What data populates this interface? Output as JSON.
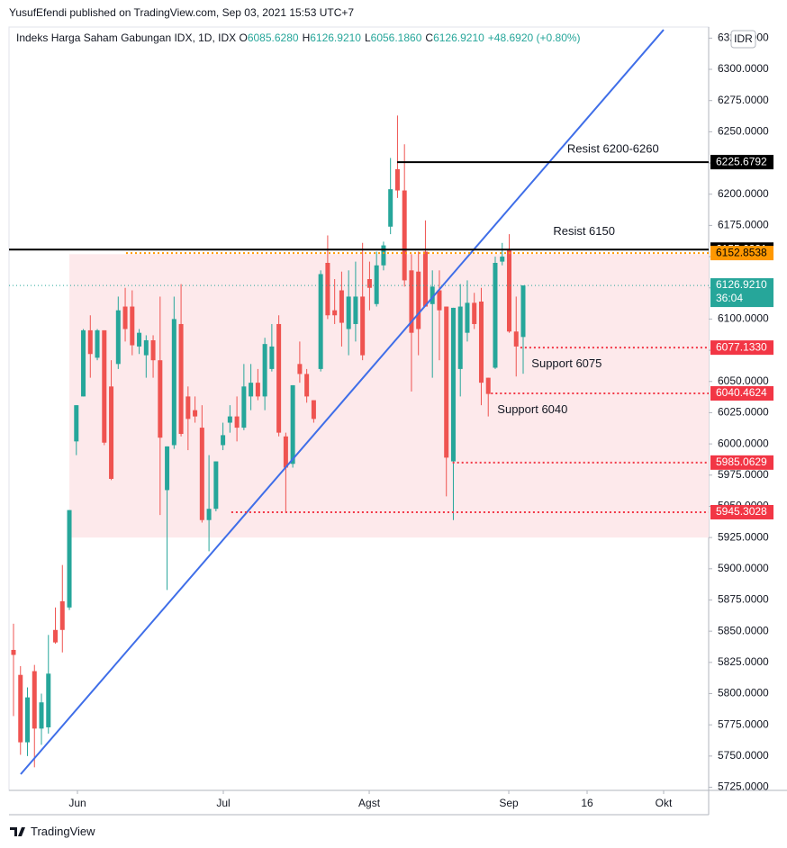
{
  "header": {
    "author_line": "YusufEfendi published on TradingView.com, Sep 03, 2021 15:53 UTC+7"
  },
  "footer": {
    "brand": "TradingView"
  },
  "chart_data": {
    "type": "candlestick",
    "title": "Indeks Harga Saham Gabungan IDX, 1D, IDX",
    "ohlc": [
      {
        "key": "O",
        "value": "6085.6280"
      },
      {
        "key": "H",
        "value": "6126.9210"
      },
      {
        "key": "L",
        "value": "6056.1860"
      },
      {
        "key": "C",
        "value": "6126.9210"
      },
      {
        "key": "",
        "value": "+48.6920 (+0.80%)"
      }
    ],
    "currency": "IDR",
    "up_color": "#26a69a",
    "down_color": "#ef5350",
    "x": [
      0,
      1,
      2,
      3,
      4,
      5,
      6,
      7,
      8,
      9,
      10,
      11,
      12,
      13,
      14,
      15,
      16,
      17,
      18,
      19,
      20,
      21,
      22,
      23,
      24,
      25,
      26,
      27,
      28,
      29,
      30,
      31,
      32,
      33,
      34,
      35,
      36,
      37,
      38,
      39,
      40,
      41,
      42,
      43,
      44,
      45,
      46,
      47,
      48,
      49,
      50,
      51,
      52,
      53,
      54,
      55,
      56,
      57,
      58,
      59,
      60,
      61,
      62,
      63,
      64,
      65,
      66,
      67,
      68,
      69,
      70,
      71,
      72,
      73
    ],
    "open": [
      5835,
      5815,
      5761,
      5818,
      5772,
      5773,
      5851,
      5874,
      5869,
      6002,
      6038,
      6091,
      6069,
      6091,
      6046,
      6064,
      6110,
      6110,
      6078,
      6071,
      6083,
      6067,
      5963,
      5999,
      6096,
      6038,
      6027,
      6013,
      5939,
      5948,
      5999,
      6017,
      6022,
      6013,
      6038,
      6049,
      6038,
      6060,
      6096,
      6006,
      5984,
      6064,
      6056,
      6035,
      6060,
      6145,
      6107,
      6123,
      6092,
      6096,
      6118,
      6132,
      6112,
      6143,
      6174,
      6220,
      6203,
      6139,
      6138,
      6154,
      6112,
      6123,
      6110,
      5986,
      6060,
      6089,
      6113,
      6114,
      6053,
      6061,
      6146,
      6155,
      6090,
      6085.628
    ],
    "high": [
      5856,
      5822,
      5805,
      5823,
      5800,
      5847,
      5869,
      5903,
      5947,
      6031,
      6092,
      6103,
      6092,
      6091,
      6067,
      6118,
      6125,
      6123,
      6092,
      6087,
      6087,
      6118,
      5998,
      6118,
      6128,
      6046,
      6038,
      6031,
      5991,
      5986,
      6017,
      6031,
      6038,
      6064,
      6064,
      6060,
      6085,
      6096,
      6103,
      6009,
      6047,
      6082,
      6060,
      6035,
      6139,
      6167,
      6132,
      6138,
      6139,
      6146,
      6161,
      6146,
      6154,
      6162,
      6229,
      6263,
      6240,
      6152,
      6154,
      6179,
      6139,
      6139,
      6110,
      6109,
      6128,
      6131,
      6121,
      6125,
      6053,
      6150,
      6161,
      6168,
      6118,
      6126.921
    ],
    "low": [
      5782,
      5751,
      5750,
      5741,
      5759,
      5768,
      5840,
      5833,
      5867,
      5991,
      6038,
      6053,
      6067,
      5999,
      5971,
      6060,
      6082,
      6071,
      6072,
      6053,
      6053,
      5943,
      5883,
      5996,
      6006,
      5995,
      6017,
      5937,
      5914,
      5946,
      5995,
      6009,
      6002,
      6011,
      6027,
      6035,
      6027,
      6058,
      6006,
      5945,
      5981,
      6049,
      6033,
      6017,
      6058,
      6100,
      6096,
      6078,
      6071,
      6082,
      6067,
      6107,
      6110,
      6139,
      6168,
      6197,
      6126,
      6042,
      6071,
      6110,
      6053,
      6067,
      5958,
      5939,
      6038,
      6082,
      6092,
      6031,
      6022,
      6060,
      6143,
      6089,
      6054,
      6056.186
    ],
    "close": [
      5831,
      5761,
      5797,
      5772,
      5793,
      5816,
      5841,
      5851,
      5947,
      6031,
      6091,
      6072,
      6091,
      6001,
      5972,
      6107,
      6092,
      6079,
      6089,
      6083,
      6067,
      6005,
      5998,
      6100,
      6008,
      6020,
      6022,
      5939,
      5948,
      5986,
      6007,
      6022,
      6013,
      6046,
      6049,
      6038,
      6080,
      6078,
      6009,
      5981,
      6047,
      6056,
      6038,
      6020,
      6136,
      6103,
      6103,
      6097,
      6118,
      6118,
      6071,
      6125,
      6143,
      6159,
      6204,
      6203,
      6131,
      6089,
      6092,
      6110,
      6126,
      6107,
      5989,
      6109,
      6110,
      6113,
      6096,
      6049,
      6040,
      6145,
      6150,
      6090,
      6078,
      6126.921
    ],
    "xlim": [
      -0.645,
      99.57
    ],
    "ylim": [
      5722.5,
      6333.9
    ],
    "xticks": [
      {
        "value": 9.157,
        "label": "Jun"
      },
      {
        "value": 30.05,
        "label": "Jul"
      },
      {
        "value": 50.95,
        "label": "Agst"
      },
      {
        "value": 70.94,
        "label": "Sep"
      },
      {
        "value": 82.16,
        "label": "16"
      },
      {
        "value": 93.12,
        "label": "Okt"
      }
    ],
    "yticks": [
      {
        "value": 5725,
        "label": "5725.0000"
      },
      {
        "value": 5750,
        "label": "5750.0000"
      },
      {
        "value": 5775,
        "label": "5775.0000"
      },
      {
        "value": 5800,
        "label": "5800.0000"
      },
      {
        "value": 5825,
        "label": "5825.0000"
      },
      {
        "value": 5850,
        "label": "5850.0000"
      },
      {
        "value": 5875,
        "label": "5875.0000"
      },
      {
        "value": 5900,
        "label": "5900.0000"
      },
      {
        "value": 5925,
        "label": "5925.0000"
      },
      {
        "value": 5950,
        "label": "5950.0000"
      },
      {
        "value": 5975,
        "label": "5975.0000"
      },
      {
        "value": 6000,
        "label": "6000.0000"
      },
      {
        "value": 6025,
        "label": "6025.0000"
      },
      {
        "value": 6050,
        "label": "6050.0000"
      },
      {
        "value": 6075,
        "label": "6075.0000"
      },
      {
        "value": 6100,
        "label": "6100.0000"
      },
      {
        "value": 6125,
        "label": "6125.0000"
      },
      {
        "value": 6150,
        "label": "6150.0000"
      },
      {
        "value": 6175,
        "label": "6175.0000"
      },
      {
        "value": 6200,
        "label": "6200.0000"
      },
      {
        "value": 6225,
        "label": "6225.0000"
      },
      {
        "value": 6250,
        "label": "6250.0000"
      },
      {
        "value": 6275,
        "label": "6275.0000"
      },
      {
        "value": 6300,
        "label": "6300.0000"
      },
      {
        "value": 6325,
        "label": "6325.0000"
      }
    ],
    "grid": false,
    "zone": {
      "top": 6152,
      "bottom": 5925,
      "x_start": 8.0,
      "color": "#fde9eb"
    },
    "trendline": {
      "x": [
        1.03,
        93.12
      ],
      "y": [
        5735.5,
        6331.7
      ],
      "color": "#3f6ee8"
    },
    "levels": [
      {
        "value": 6225.6792,
        "x_start": 54.95,
        "line": "solid",
        "color": "#000000",
        "text_color": "#ffffff"
      },
      {
        "value": 6155.6331,
        "line": "solid",
        "color": "#000000",
        "text_color": "#ffffff"
      },
      {
        "value": 6152.8538,
        "x_start": 16.12,
        "line": "dotted",
        "color": "#ff9800",
        "text_color": "#000000"
      },
      {
        "value": 6126.921,
        "label": "6126.9210",
        "countdown": "36:04",
        "line": "sparse",
        "color": "#26a69a",
        "text_color": "#ffffff"
      },
      {
        "value": 6077.133,
        "label": "6077.1330",
        "x_start": 72.6,
        "line": "dotted",
        "color": "#f23645",
        "text_color": "#ffffff"
      },
      {
        "value": 6040.4624,
        "x_start": 68.4,
        "line": "dotted",
        "color": "#f23645",
        "text_color": "#ffffff"
      },
      {
        "value": 5985.0629,
        "x_start": 62.9,
        "line": "dotted",
        "color": "#f23645",
        "text_color": "#ffffff"
      },
      {
        "value": 5945.3028,
        "x_start": 31.2,
        "line": "dotted",
        "color": "#f23645",
        "text_color": "#ffffff"
      }
    ],
    "annotations": [
      {
        "text": "Resist 6200-6260",
        "x": 79.3,
        "y": 6235.8
      },
      {
        "text": "Resist 6150",
        "x": 77.3,
        "y": 6170
      },
      {
        "text": "Support 6075",
        "x": 74.2,
        "y": 6064
      },
      {
        "text": "Support 6040",
        "x": 69.3,
        "y": 6027
      }
    ]
  }
}
